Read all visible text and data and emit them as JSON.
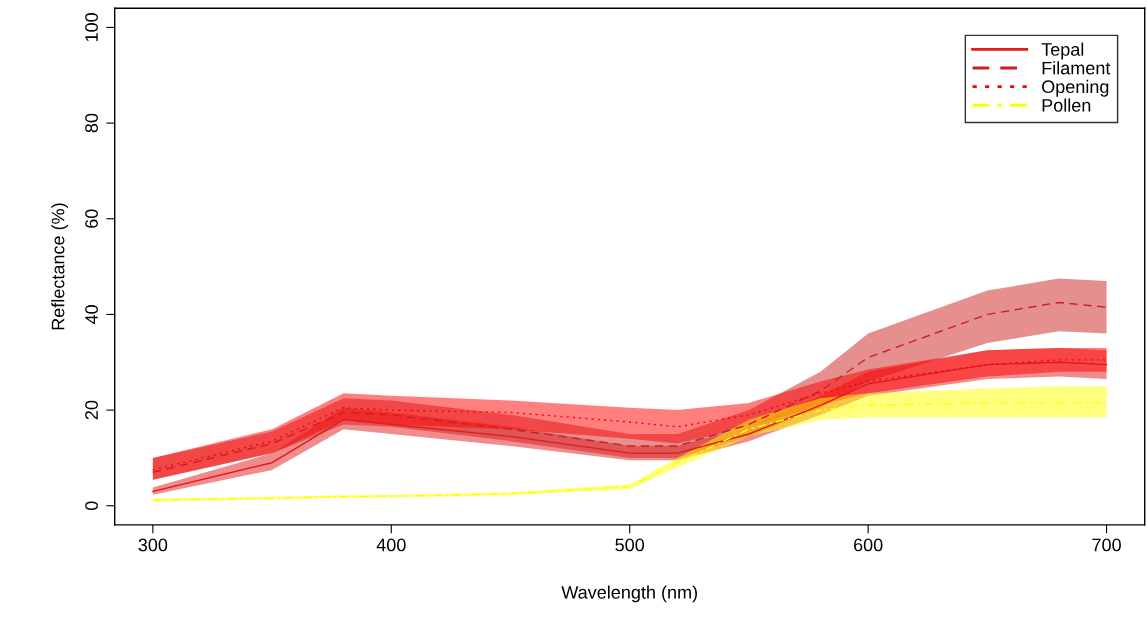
{
  "chart_data": {
    "type": "line",
    "xlabel": "Wavelength (nm)",
    "ylabel": "Reflectance (%)",
    "xlim": [
      284,
      716
    ],
    "ylim": [
      -4,
      104
    ],
    "xticks": [
      300,
      400,
      500,
      600,
      700
    ],
    "yticks": [
      0,
      20,
      40,
      60,
      80,
      100
    ],
    "grid": false,
    "legend": "top right",
    "x": [
      300,
      350,
      380,
      400,
      450,
      500,
      520,
      550,
      580,
      600,
      650,
      680,
      700
    ],
    "series": [
      {
        "name": "Tepal",
        "color": "#e31a1c",
        "line_style": "solid",
        "values": [
          3,
          9,
          18,
          17,
          14.5,
          11,
          11,
          15,
          21,
          25.5,
          29.5,
          30,
          29.5
        ],
        "lower": [
          2.3,
          7.5,
          16,
          15,
          12.5,
          9.5,
          9.5,
          13.5,
          19,
          23,
          26.5,
          27,
          26.5
        ],
        "upper": [
          3.8,
          11,
          20.5,
          19.5,
          16.5,
          12.5,
          12.5,
          16.5,
          23,
          28,
          32.5,
          33,
          32.5
        ]
      },
      {
        "name": "Filament",
        "color": "#cc1f1f",
        "line_style": "dashed",
        "values": [
          7,
          13,
          19.5,
          19,
          16,
          12.5,
          12.5,
          17,
          24,
          31,
          40,
          42.5,
          41.5
        ],
        "lower": [
          5.4,
          11,
          17,
          16.5,
          13.5,
          10,
          10,
          14.5,
          20.5,
          26,
          34,
          36.5,
          36
        ],
        "upper": [
          10,
          15.5,
          22.5,
          22,
          19,
          15,
          15,
          20,
          28,
          36,
          45,
          47.5,
          47
        ]
      },
      {
        "name": "Opening",
        "color": "#ff0000",
        "line_style": "dotted",
        "values": [
          7.5,
          13.5,
          20.5,
          20,
          19.5,
          17.5,
          16.5,
          19,
          23.5,
          26,
          29.5,
          30.5,
          30.5
        ],
        "lower": [
          5.5,
          11,
          18,
          17,
          16,
          14,
          13,
          16.5,
          21,
          23.5,
          27,
          28,
          28
        ],
        "upper": [
          10,
          16,
          23.5,
          23,
          22,
          20.5,
          20,
          21.5,
          26,
          28.5,
          32.5,
          33,
          33
        ]
      },
      {
        "name": "Pollen",
        "color": "#ffff00",
        "line_style": "dashdot",
        "values": [
          1.2,
          1.6,
          1.9,
          2,
          2.5,
          4,
          9,
          16,
          20,
          21,
          21.5,
          21.5,
          21.5
        ],
        "lower": [
          0.9,
          1.3,
          1.6,
          1.7,
          2.2,
          3.5,
          8,
          14.5,
          18,
          18.5,
          18.5,
          18.5,
          18.5
        ],
        "upper": [
          1.5,
          1.9,
          2.2,
          2.3,
          2.8,
          4.5,
          10,
          18,
          22.5,
          23.5,
          24.5,
          25,
          25
        ]
      }
    ]
  }
}
